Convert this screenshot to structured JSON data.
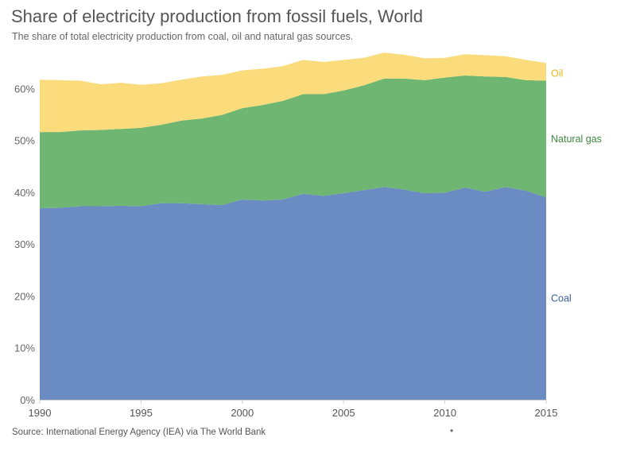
{
  "title": "Share of electricity production from fossil fuels, World",
  "subtitle": "The share of total electricity production from coal, oil and natural gas sources.",
  "source": "Source: International Energy Agency (IEA) via The World Bank",
  "footer_dot": "•",
  "colors": {
    "coal": "#6b8bc3",
    "natural_gas": "#6eb672",
    "oil": "#fbdc7c",
    "coal_label": "#3a5d9c",
    "gas_label": "#3c8a3f",
    "oil_label": "#e8b71a",
    "grid": "#dddddd",
    "axis_text": "#666666"
  },
  "chart_data": {
    "type": "area",
    "stacked": true,
    "title": "Share of electricity production from fossil fuels, World",
    "x": [
      1990,
      1991,
      1992,
      1993,
      1994,
      1995,
      1996,
      1997,
      1998,
      1999,
      2000,
      2001,
      2002,
      2003,
      2004,
      2005,
      2006,
      2007,
      2008,
      2009,
      2010,
      2011,
      2012,
      2013,
      2014,
      2015
    ],
    "series": [
      {
        "name": "Coal",
        "color_key": "coal",
        "values": [
          36.9,
          37.0,
          37.3,
          37.3,
          37.4,
          37.3,
          37.9,
          37.9,
          37.7,
          37.5,
          38.6,
          38.4,
          38.6,
          39.7,
          39.3,
          39.8,
          40.4,
          41.0,
          40.5,
          39.8,
          39.9,
          40.9,
          40.1,
          41.0,
          40.3,
          39.0
        ]
      },
      {
        "name": "Natural gas",
        "color_key": "natural_gas",
        "values": [
          14.7,
          14.6,
          14.6,
          14.7,
          14.8,
          15.1,
          15.1,
          15.9,
          16.5,
          17.4,
          17.6,
          18.4,
          19.0,
          19.2,
          19.6,
          19.8,
          20.2,
          20.9,
          21.4,
          21.8,
          22.2,
          21.6,
          22.2,
          21.2,
          21.3,
          22.5
        ]
      },
      {
        "name": "Oil",
        "color_key": "oil",
        "values": [
          10.1,
          10.0,
          9.6,
          8.8,
          8.9,
          8.3,
          8.0,
          7.9,
          8.1,
          7.7,
          7.3,
          7.0,
          6.7,
          6.6,
          6.2,
          5.9,
          5.3,
          5.0,
          4.6,
          4.2,
          3.8,
          4.1,
          4.1,
          4.0,
          3.9,
          3.4
        ]
      }
    ],
    "xlabel": "",
    "ylabel": "",
    "xlim": [
      1990,
      2015
    ],
    "ylim": [
      0,
      70
    ],
    "x_ticks": [
      1990,
      1995,
      2000,
      2005,
      2010,
      2015
    ],
    "y_ticks": [
      0,
      10,
      20,
      30,
      40,
      50,
      60
    ],
    "y_tick_labels": [
      "0%",
      "10%",
      "20%",
      "30%",
      "40%",
      "50%",
      "60%"
    ],
    "grid": "horizontal dashed",
    "legend": "inline labels at right end of each series",
    "series_labels": {
      "coal": "Coal",
      "natural_gas": "Natural gas",
      "oil": "Oil"
    }
  }
}
